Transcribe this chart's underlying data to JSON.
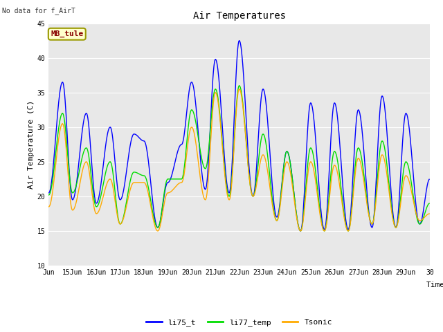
{
  "title": "Air Temperatures",
  "ylabel": "Air Temperature (C)",
  "xlabel": "Time",
  "top_left_text": "No data for f_AirT",
  "legend_label": "MB_tule",
  "ylim": [
    10,
    45
  ],
  "yticks": [
    10,
    15,
    20,
    25,
    30,
    35,
    40,
    45
  ],
  "xtick_labels": [
    "Jun",
    "15Jun",
    "16Jun",
    "17Jun",
    "18Jun",
    "19Jun",
    "20Jun",
    "21Jun",
    "22Jun",
    "23Jun",
    "24Jun",
    "25Jun",
    "26Jun",
    "27Jun",
    "28Jun",
    "29Jun",
    "30"
  ],
  "series": {
    "li75_t": {
      "color": "#0000ff",
      "peaks": [
        20.5,
        36.5,
        19.5,
        32.0,
        19.0,
        30.0,
        19.5,
        29.0,
        28.0,
        15.5,
        22.0,
        27.5,
        36.5,
        21.0,
        39.8,
        20.5,
        42.5,
        20.0,
        35.5,
        17.0,
        26.5,
        15.0,
        33.5,
        15.2,
        33.5,
        15.2,
        32.5,
        15.5,
        34.5,
        15.5,
        32.0,
        16.0,
        22.5,
        18.5,
        16.0
      ]
    },
    "li77_temp": {
      "color": "#00dd00",
      "peaks": [
        20.2,
        32.0,
        20.5,
        27.0,
        18.5,
        25.0,
        16.0,
        23.5,
        23.0,
        15.5,
        22.5,
        22.5,
        32.5,
        24.0,
        35.5,
        20.0,
        36.0,
        20.0,
        29.0,
        16.5,
        26.5,
        15.0,
        27.0,
        15.0,
        26.5,
        15.0,
        27.0,
        16.0,
        28.0,
        15.5,
        25.0,
        16.0,
        19.0,
        16.0,
        15.5
      ]
    },
    "Tsonic": {
      "color": "#ffaa00",
      "peaks": [
        18.5,
        30.5,
        18.0,
        25.0,
        17.5,
        22.5,
        16.0,
        22.0,
        22.0,
        15.0,
        20.5,
        22.0,
        30.0,
        19.5,
        35.0,
        19.5,
        35.5,
        20.0,
        26.0,
        16.5,
        25.0,
        15.0,
        25.0,
        15.0,
        24.5,
        15.0,
        25.5,
        16.0,
        26.0,
        15.5,
        23.0,
        16.5,
        17.5,
        17.5,
        16.0
      ]
    }
  },
  "plot_bg": "#e8e8e8",
  "fig_bg": "#ffffff",
  "grid_color": "#ffffff",
  "n_days": 16,
  "n_per_day": 48
}
